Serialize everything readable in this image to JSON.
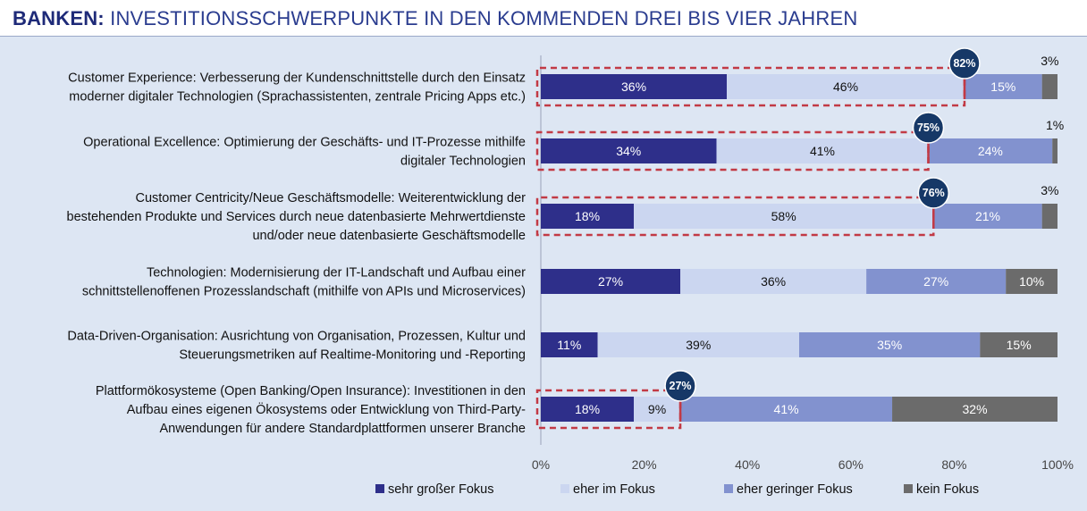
{
  "header": {
    "title_bold": "BANKEN:",
    "title_rest": " INVESTITIONSSCHWERPUNKTE IN DEN KOMMENDEN DREI BIS VIER JAHREN"
  },
  "chart_data": {
    "type": "bar",
    "orientation": "horizontal-stacked-100",
    "title": "BANKEN: INVESTITIONSSCHWERPUNKTE IN DEN KOMMENDEN DREI BIS VIER JAHREN",
    "xlim": [
      0,
      100
    ],
    "x_ticks": [
      "0%",
      "20%",
      "40%",
      "60%",
      "80%",
      "100%"
    ],
    "legend_position": "bottom",
    "colors": [
      "#2e2f8a",
      "#cbd6f0",
      "#8292cf",
      "#6b6b6b"
    ],
    "series": [
      {
        "name": "sehr großer Fokus",
        "values": [
          36,
          34,
          18,
          27,
          11,
          18
        ]
      },
      {
        "name": "eher im Fokus",
        "values": [
          46,
          41,
          58,
          36,
          39,
          9
        ]
      },
      {
        "name": "eher geringer Fokus",
        "values": [
          15,
          24,
          21,
          27,
          35,
          41
        ]
      },
      {
        "name": "kein Fokus",
        "values": [
          3,
          1,
          3,
          10,
          15,
          32
        ]
      }
    ],
    "categories": [
      [
        "Customer Experience: Verbesserung der Kundenschnittstelle durch den Einsatz",
        "moderner digitaler Technologien (Sprachassistenten, zentrale Pricing Apps etc.)"
      ],
      [
        "Operational Excellence: Optimierung der Geschäfts- und IT-Prozesse mithilfe",
        "digitaler Technologien"
      ],
      [
        "Customer Centricity/Neue Geschäftsmodelle: Weiterentwicklung der",
        "bestehenden Produkte und Services durch neue datenbasierte Mehrwertdienste",
        "und/oder neue datenbasierte Geschäftsmodelle"
      ],
      [
        "Technologien: Modernisierung der IT-Landschaft und Aufbau einer",
        "schnittstellenoffenen  Prozesslandschaft (mithilfe von APIs und Microservices)"
      ],
      [
        "Data-Driven-Organisation: Ausrichtung von Organisation, Prozessen, Kultur und",
        "Steuerungsmetriken auf Realtime-Monitoring und -Reporting"
      ],
      [
        "Plattformökosysteme (Open Banking/Open Insurance): Investitionen in den",
        "Aufbau eines eigenen Ökosystems oder Entwicklung von Third-Party-",
        "Anwendungen für andere Standardplattformen unserer Branche"
      ]
    ],
    "highlights": [
      {
        "category_index": 0,
        "sum": 82,
        "label": "82%"
      },
      {
        "category_index": 1,
        "sum": 75,
        "label": "75%"
      },
      {
        "category_index": 2,
        "sum": 76,
        "label": "76%"
      },
      {
        "category_index": 5,
        "sum": 27,
        "label": "27%"
      }
    ]
  }
}
